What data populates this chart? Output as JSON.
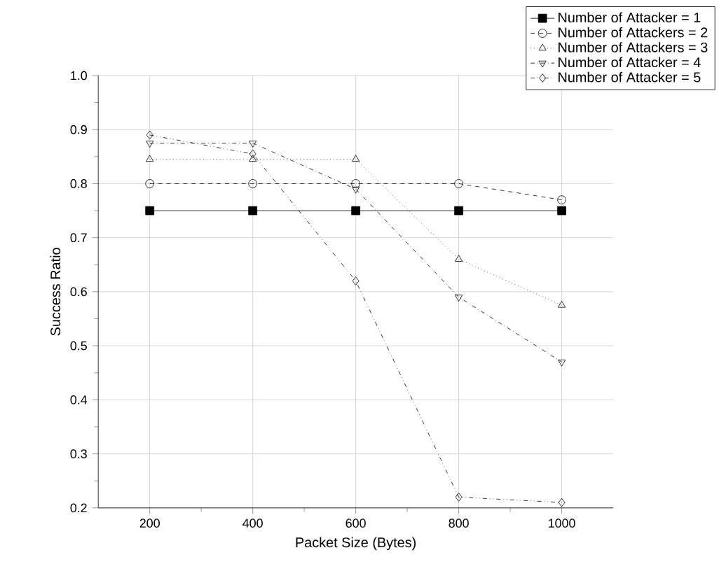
{
  "chart_data": {
    "type": "line",
    "xlabel": "Packet Size (Bytes)",
    "ylabel": "Success Ratio",
    "x": [
      200,
      400,
      600,
      800,
      1000
    ],
    "series": [
      {
        "name": "Number of Attacker = 1",
        "color": "#000000",
        "values": [
          0.75,
          0.75,
          0.75,
          0.75,
          0.75
        ],
        "marker": "square",
        "line_style": "solid"
      },
      {
        "name": "Number of Attackers = 2",
        "color": "#000000",
        "values": [
          0.8,
          0.8,
          0.8,
          0.8,
          0.77
        ],
        "marker": "circle",
        "line_style": "dashed"
      },
      {
        "name": "Number of Attackers = 3",
        "color": "#000000",
        "values": [
          0.845,
          0.845,
          0.845,
          0.66,
          0.575
        ],
        "marker": "triangle",
        "line_style": "dotted"
      },
      {
        "name": "Number of Attacker = 4",
        "color": "#000000",
        "values": [
          0.875,
          0.875,
          0.79,
          0.59,
          0.47
        ],
        "marker": "triangle-down",
        "line_style": "dashdot"
      },
      {
        "name": "Number of Attacker = 5",
        "color": "#000000",
        "values": [
          0.89,
          0.855,
          0.62,
          0.22,
          0.21
        ],
        "marker": "diamond",
        "line_style": "dashdotdot"
      }
    ],
    "xlim": [
      100,
      1100
    ],
    "ylim": [
      0.2,
      1.0
    ],
    "xticks": [
      200,
      400,
      600,
      800,
      1000
    ],
    "yticks": [
      0.2,
      0.3,
      0.4,
      0.5,
      0.6,
      0.7,
      0.8,
      0.9,
      {
        "value": 1.0,
        "label": "1.0"
      }
    ],
    "grid": true,
    "legend": "top right"
  }
}
